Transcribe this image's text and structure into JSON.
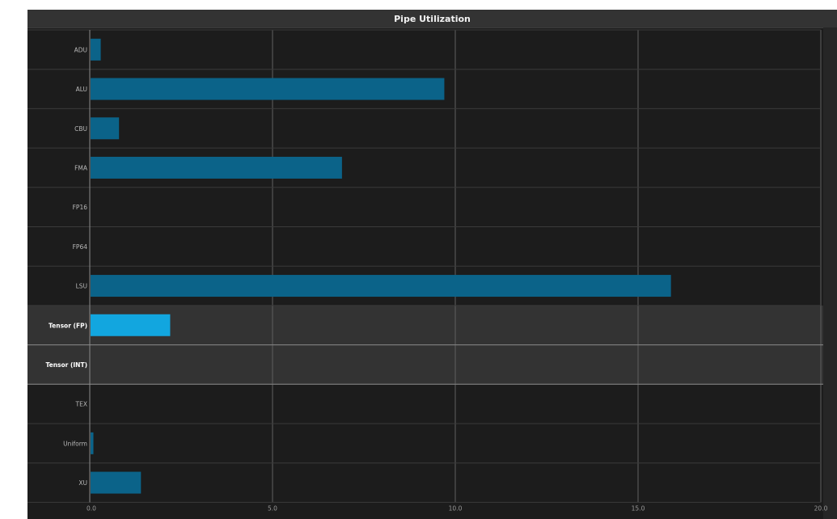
{
  "title": "Pipe Utilization",
  "chart_data": {
    "type": "bar",
    "orientation": "horizontal",
    "title": "Pipe Utilization",
    "categories": [
      "ADU",
      "ALU",
      "CBU",
      "FMA",
      "FP16",
      "FP64",
      "LSU",
      "Tensor (FP)",
      "Tensor (INT)",
      "TEX",
      "Uniform",
      "XU"
    ],
    "values": [
      0.3,
      9.7,
      0.8,
      6.9,
      0.0,
      0.0,
      15.9,
      2.2,
      0.0,
      0.0,
      0.1,
      1.4
    ],
    "highlighted": [
      "Tensor (FP)",
      "Tensor (INT)"
    ],
    "xlim": [
      0,
      20
    ],
    "xticks": [
      "0.0",
      "5.0",
      "10.0",
      "15.0",
      "20.0"
    ],
    "xlabel": "",
    "ylabel": "",
    "grid": true,
    "colors": {
      "bar": "#0b6389",
      "bar_highlight": "#12a6df",
      "background": "#1c1c1c",
      "highlight_band": "#333333",
      "grid": "#5f5f5f",
      "title_bar": "#333333"
    }
  }
}
